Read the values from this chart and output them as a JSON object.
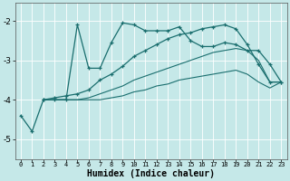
{
  "xlabel": "Humidex (Indice chaleur)",
  "background_color": "#c5e8e8",
  "grid_color": "#ffffff",
  "line_color": "#1a6e6e",
  "xlim": [
    -0.5,
    23.5
  ],
  "ylim": [
    -5.5,
    -1.55
  ],
  "yticks": [
    -5,
    -4,
    -3,
    -2
  ],
  "xticks": [
    0,
    1,
    2,
    3,
    4,
    5,
    6,
    7,
    8,
    9,
    10,
    11,
    12,
    13,
    14,
    15,
    16,
    17,
    18,
    19,
    20,
    21,
    22,
    23
  ],
  "s1_x": [
    0,
    1,
    2,
    3,
    4,
    5,
    6,
    7,
    8,
    9,
    10,
    11,
    12,
    13,
    14,
    15,
    16,
    17,
    18,
    19,
    20,
    21,
    22,
    23
  ],
  "s1_y": [
    -4.4,
    -4.8,
    -4.0,
    -4.0,
    -4.0,
    -2.1,
    -3.2,
    -3.2,
    -2.55,
    -2.05,
    -2.1,
    -2.25,
    -2.25,
    -2.25,
    -2.15,
    -2.5,
    -2.65,
    -2.65,
    -2.55,
    -2.6,
    -2.75,
    -2.75,
    -3.1,
    -3.55
  ],
  "s2_x": [
    2,
    3,
    4,
    5,
    6,
    7,
    8,
    9,
    10,
    11,
    12,
    13,
    14,
    15,
    16,
    17,
    18,
    19,
    20,
    21,
    22,
    23
  ],
  "s2_y": [
    -4.0,
    -3.95,
    -3.9,
    -3.85,
    -3.75,
    -3.5,
    -3.35,
    -3.15,
    -2.9,
    -2.75,
    -2.6,
    -2.45,
    -2.35,
    -2.3,
    -2.2,
    -2.15,
    -2.1,
    -2.2,
    -2.6,
    -3.1,
    -3.55,
    -3.55
  ],
  "s3_x": [
    2,
    3,
    4,
    5,
    6,
    7,
    8,
    9,
    10,
    11,
    12,
    13,
    14,
    15,
    16,
    17,
    18,
    19,
    20,
    21,
    22,
    23
  ],
  "s3_y": [
    -4.0,
    -4.0,
    -4.0,
    -4.0,
    -3.95,
    -3.85,
    -3.75,
    -3.65,
    -3.5,
    -3.4,
    -3.3,
    -3.2,
    -3.1,
    -3.0,
    -2.9,
    -2.8,
    -2.75,
    -2.7,
    -2.75,
    -3.0,
    -3.55,
    -3.55
  ],
  "s4_x": [
    2,
    3,
    4,
    5,
    6,
    7,
    8,
    9,
    10,
    11,
    12,
    13,
    14,
    15,
    16,
    17,
    18,
    19,
    20,
    21,
    22,
    23
  ],
  "s4_y": [
    -4.0,
    -4.0,
    -4.0,
    -4.0,
    -4.0,
    -4.0,
    -3.95,
    -3.9,
    -3.8,
    -3.75,
    -3.65,
    -3.6,
    -3.5,
    -3.45,
    -3.4,
    -3.35,
    -3.3,
    -3.25,
    -3.35,
    -3.55,
    -3.7,
    -3.55
  ]
}
